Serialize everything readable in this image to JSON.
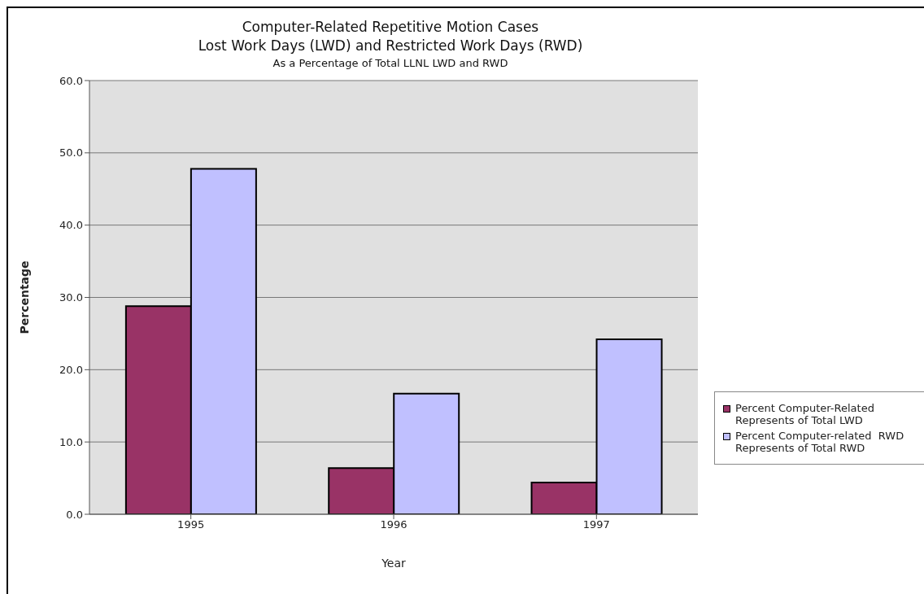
{
  "chart_data": {
    "type": "bar",
    "title": "Computer-Related Repetitive Motion Cases\nLost Work Days (LWD) and Restricted Work Days (RWD)",
    "subtitle": "As a Percentage of Total LLNL LWD and RWD",
    "xlabel": "Year",
    "ylabel": "Percentage",
    "categories": [
      "1995",
      "1996",
      "1997"
    ],
    "series": [
      {
        "name": "Percent Computer-Related Represents of Total LWD",
        "color": "#993366",
        "values": [
          28.8,
          6.4,
          4.4
        ]
      },
      {
        "name": "Percent Computer-related  RWD Represents of Total RWD",
        "color": "#c0c0ff",
        "values": [
          47.8,
          16.7,
          24.2
        ]
      }
    ],
    "ylim": [
      0,
      60
    ],
    "yticks": [
      {
        "value": 0,
        "label": "0.0"
      },
      {
        "value": 10,
        "label": "10.0"
      },
      {
        "value": 20,
        "label": "20.0"
      },
      {
        "value": 30,
        "label": "30.0"
      },
      {
        "value": 40,
        "label": "40.0"
      },
      {
        "value": 50,
        "label": "50.0"
      },
      {
        "value": 60,
        "label": "60.0"
      }
    ],
    "grid": "y",
    "legend": "right"
  }
}
